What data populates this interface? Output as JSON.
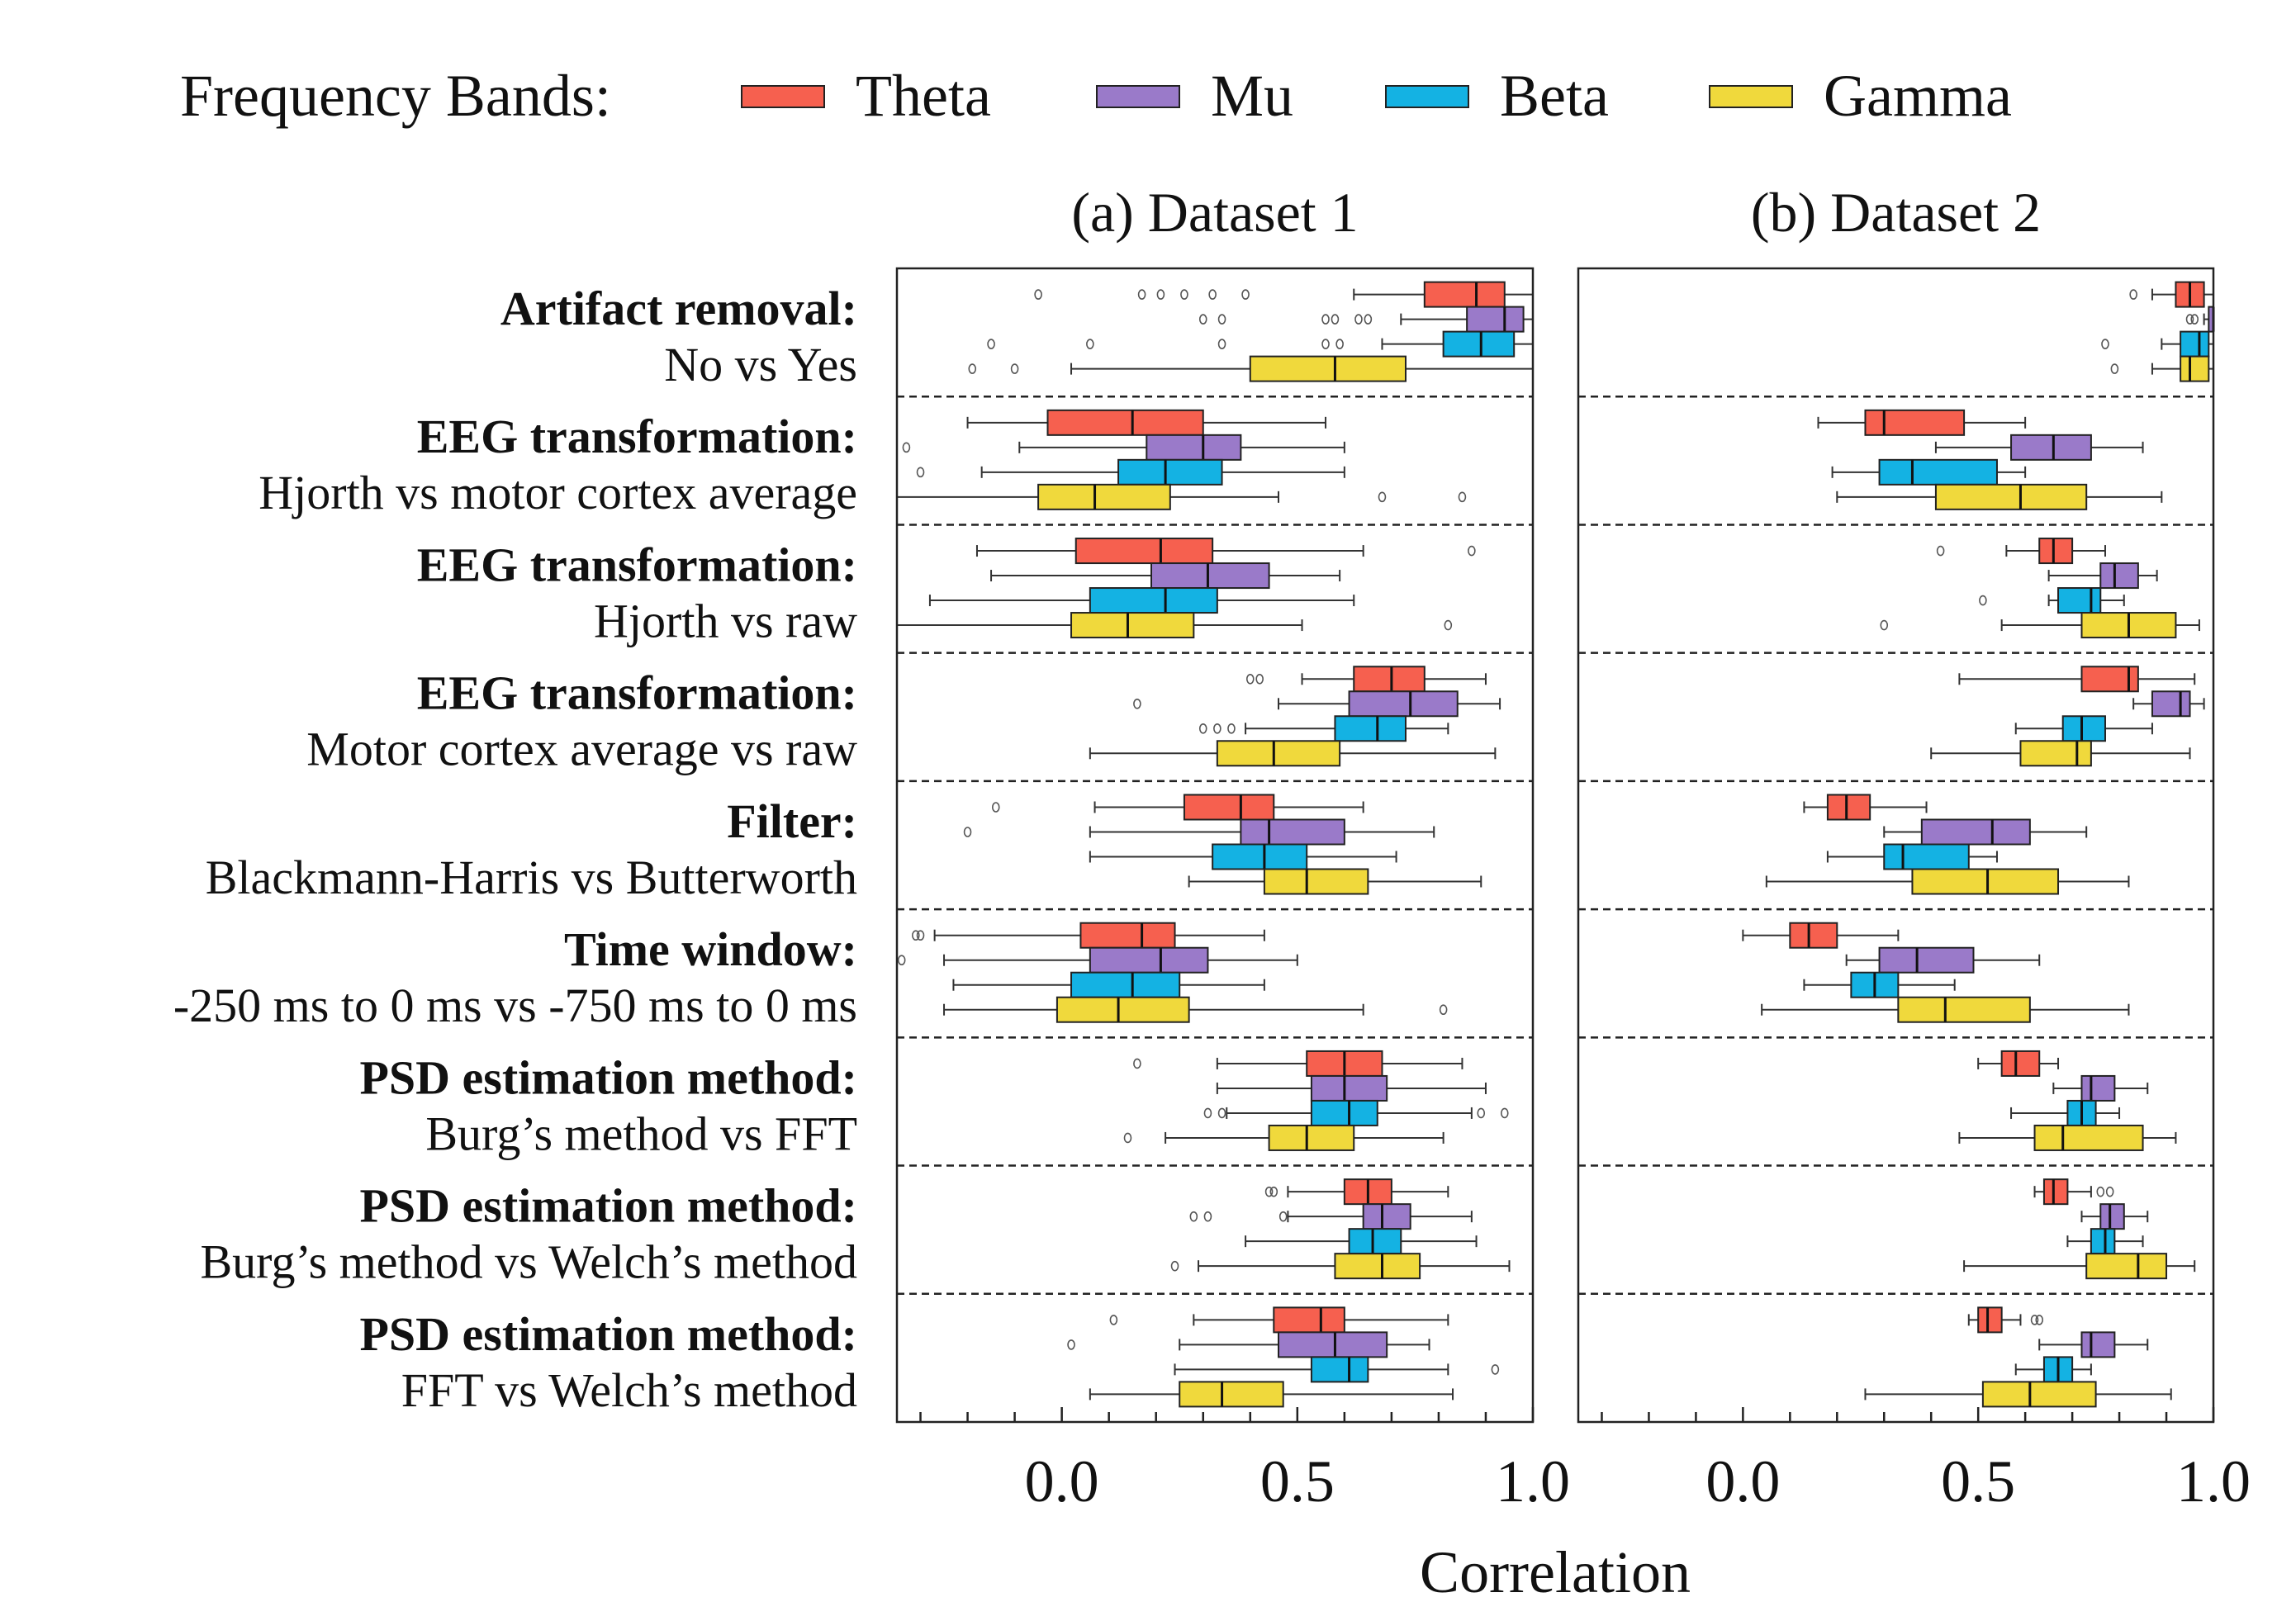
{
  "chart_data": {
    "type": "boxplot",
    "legend": {
      "title": "Frequency Bands:",
      "placement": "top",
      "bands": [
        {
          "key": "theta",
          "name": "Theta",
          "color": "#f6604f"
        },
        {
          "key": "mu",
          "name": "Mu",
          "color": "#9a7ac9"
        },
        {
          "key": "beta",
          "name": "Beta",
          "color": "#14b2e3"
        },
        {
          "key": "gamma",
          "name": "Gamma",
          "color": "#f0d93c"
        }
      ]
    },
    "xlabel": "Correlation",
    "xlim": [
      -0.35,
      1.0
    ],
    "xticks": [
      "0.0",
      "0.5",
      "1.0"
    ],
    "xtick_values": [
      0.0,
      0.5,
      1.0
    ],
    "panels": [
      {
        "title": "(a) Dataset 1"
      },
      {
        "title": "(b) Dataset 2"
      }
    ],
    "comparisons": [
      {
        "head": "Artifact removal:",
        "sub": "No vs Yes"
      },
      {
        "head": "EEG transformation:",
        "sub": "Hjorth vs motor cortex average"
      },
      {
        "head": "EEG transformation:",
        "sub": "Hjorth vs raw"
      },
      {
        "head": "EEG transformation:",
        "sub": "Motor cortex average vs raw"
      },
      {
        "head": "Filter:",
        "sub": "Blackmann-Harris vs Butterworth"
      },
      {
        "head": "Time window:",
        "sub": "-250 ms to 0 ms vs -750 ms to 0 ms"
      },
      {
        "head": "PSD estimation method:",
        "sub": "Burg’s method vs FFT"
      },
      {
        "head": "PSD estimation method:",
        "sub": "Burg’s method vs Welch’s method"
      },
      {
        "head": "PSD estimation method:",
        "sub": "FFT vs Welch’s method"
      }
    ],
    "boxes": [
      [
        [
          {
            "min": 0.62,
            "q1": 0.77,
            "med": 0.88,
            "q3": 0.94,
            "max": 1.0,
            "out": [
              -0.05,
              0.17,
              0.21,
              0.26,
              0.32,
              0.39
            ]
          },
          {
            "min": 0.72,
            "q1": 0.86,
            "med": 0.94,
            "q3": 0.98,
            "max": 1.0,
            "out": [
              0.3,
              0.34,
              0.56,
              0.58,
              0.63,
              0.65
            ]
          },
          {
            "min": 0.68,
            "q1": 0.81,
            "med": 0.89,
            "q3": 0.96,
            "max": 1.0,
            "out": [
              -0.15,
              0.06,
              0.34,
              0.56,
              0.59
            ]
          },
          {
            "min": 0.02,
            "q1": 0.4,
            "med": 0.58,
            "q3": 0.73,
            "max": 1.0,
            "out": [
              -0.19,
              -0.1
            ]
          }
        ],
        [
          {
            "min": -0.2,
            "q1": -0.03,
            "med": 0.15,
            "q3": 0.3,
            "max": 0.56,
            "out": []
          },
          {
            "min": -0.09,
            "q1": 0.18,
            "med": 0.3,
            "q3": 0.38,
            "max": 0.6,
            "out": [
              -0.33
            ]
          },
          {
            "min": -0.17,
            "q1": 0.12,
            "med": 0.22,
            "q3": 0.34,
            "max": 0.6,
            "out": [
              -0.3
            ]
          },
          {
            "min": -0.35,
            "q1": -0.05,
            "med": 0.07,
            "q3": 0.23,
            "max": 0.46,
            "out": [
              0.68,
              0.85
            ]
          }
        ],
        [
          {
            "min": -0.18,
            "q1": 0.03,
            "med": 0.21,
            "q3": 0.32,
            "max": 0.64,
            "out": [
              0.87
            ]
          },
          {
            "min": -0.15,
            "q1": 0.19,
            "med": 0.31,
            "q3": 0.44,
            "max": 0.59,
            "out": []
          },
          {
            "min": -0.28,
            "q1": 0.06,
            "med": 0.22,
            "q3": 0.33,
            "max": 0.62,
            "out": []
          },
          {
            "min": -0.35,
            "q1": 0.02,
            "med": 0.14,
            "q3": 0.28,
            "max": 0.51,
            "out": [
              0.82
            ]
          }
        ],
        [
          {
            "min": 0.51,
            "q1": 0.62,
            "med": 0.7,
            "q3": 0.77,
            "max": 0.9,
            "out": [
              0.4,
              0.42
            ]
          },
          {
            "min": 0.46,
            "q1": 0.61,
            "med": 0.74,
            "q3": 0.84,
            "max": 0.93,
            "out": [
              0.16
            ]
          },
          {
            "min": 0.39,
            "q1": 0.58,
            "med": 0.67,
            "q3": 0.73,
            "max": 0.82,
            "out": [
              0.3,
              0.33,
              0.36
            ]
          },
          {
            "min": 0.06,
            "q1": 0.33,
            "med": 0.45,
            "q3": 0.59,
            "max": 0.92,
            "out": []
          }
        ],
        [
          {
            "min": 0.07,
            "q1": 0.26,
            "med": 0.38,
            "q3": 0.45,
            "max": 0.64,
            "out": [
              -0.14
            ]
          },
          {
            "min": 0.06,
            "q1": 0.38,
            "med": 0.44,
            "q3": 0.6,
            "max": 0.79,
            "out": [
              -0.2
            ]
          },
          {
            "min": 0.06,
            "q1": 0.32,
            "med": 0.43,
            "q3": 0.52,
            "max": 0.71,
            "out": []
          },
          {
            "min": 0.27,
            "q1": 0.43,
            "med": 0.52,
            "q3": 0.65,
            "max": 0.89,
            "out": []
          }
        ],
        [
          {
            "min": -0.27,
            "q1": 0.04,
            "med": 0.17,
            "q3": 0.24,
            "max": 0.43,
            "out": [
              -0.31,
              -0.3
            ]
          },
          {
            "min": -0.25,
            "q1": 0.06,
            "med": 0.21,
            "q3": 0.31,
            "max": 0.5,
            "out": [
              -0.34
            ]
          },
          {
            "min": -0.23,
            "q1": 0.02,
            "med": 0.15,
            "q3": 0.25,
            "max": 0.43,
            "out": []
          },
          {
            "min": -0.25,
            "q1": -0.01,
            "med": 0.12,
            "q3": 0.27,
            "max": 0.64,
            "out": [
              0.81
            ]
          }
        ],
        [
          {
            "min": 0.33,
            "q1": 0.52,
            "med": 0.6,
            "q3": 0.68,
            "max": 0.85,
            "out": [
              0.16
            ]
          },
          {
            "min": 0.33,
            "q1": 0.53,
            "med": 0.6,
            "q3": 0.69,
            "max": 0.9,
            "out": []
          },
          {
            "min": 0.35,
            "q1": 0.53,
            "med": 0.61,
            "q3": 0.67,
            "max": 0.87,
            "out": [
              0.31,
              0.34,
              0.89,
              0.94
            ]
          },
          {
            "min": 0.22,
            "q1": 0.44,
            "med": 0.52,
            "q3": 0.62,
            "max": 0.81,
            "out": [
              0.14
            ]
          }
        ],
        [
          {
            "min": 0.48,
            "q1": 0.6,
            "med": 0.65,
            "q3": 0.7,
            "max": 0.82,
            "out": [
              0.44,
              0.45
            ]
          },
          {
            "min": 0.48,
            "q1": 0.64,
            "med": 0.68,
            "q3": 0.74,
            "max": 0.87,
            "out": [
              0.28,
              0.31,
              0.47
            ]
          },
          {
            "min": 0.39,
            "q1": 0.61,
            "med": 0.66,
            "q3": 0.72,
            "max": 0.88,
            "out": []
          },
          {
            "min": 0.29,
            "q1": 0.58,
            "med": 0.68,
            "q3": 0.76,
            "max": 0.95,
            "out": [
              0.24
            ]
          }
        ],
        [
          {
            "min": 0.28,
            "q1": 0.45,
            "med": 0.55,
            "q3": 0.6,
            "max": 0.82,
            "out": [
              0.11
            ]
          },
          {
            "min": 0.25,
            "q1": 0.46,
            "med": 0.58,
            "q3": 0.69,
            "max": 0.78,
            "out": [
              0.02
            ]
          },
          {
            "min": 0.24,
            "q1": 0.53,
            "med": 0.61,
            "q3": 0.65,
            "max": 0.82,
            "out": [
              0.92
            ]
          },
          {
            "min": 0.06,
            "q1": 0.25,
            "med": 0.34,
            "q3": 0.47,
            "max": 0.83,
            "out": []
          }
        ]
      ],
      [
        [
          {
            "min": 0.87,
            "q1": 0.92,
            "med": 0.95,
            "q3": 0.98,
            "max": 1.0,
            "out": [
              0.83
            ]
          },
          {
            "min": 0.98,
            "q1": 0.99,
            "med": 1.0,
            "q3": 1.0,
            "max": 1.0,
            "out": [
              0.95,
              0.96
            ]
          },
          {
            "min": 0.89,
            "q1": 0.93,
            "med": 0.97,
            "q3": 0.99,
            "max": 1.0,
            "out": [
              0.77
            ]
          },
          {
            "min": 0.87,
            "q1": 0.93,
            "med": 0.95,
            "q3": 0.99,
            "max": 1.0,
            "out": [
              0.79
            ]
          }
        ],
        [
          {
            "min": 0.16,
            "q1": 0.26,
            "med": 0.3,
            "q3": 0.47,
            "max": 0.6,
            "out": []
          },
          {
            "min": 0.41,
            "q1": 0.57,
            "med": 0.66,
            "q3": 0.74,
            "max": 0.85,
            "out": []
          },
          {
            "min": 0.19,
            "q1": 0.29,
            "med": 0.36,
            "q3": 0.54,
            "max": 0.6,
            "out": []
          },
          {
            "min": 0.2,
            "q1": 0.41,
            "med": 0.59,
            "q3": 0.73,
            "max": 0.89,
            "out": []
          }
        ],
        [
          {
            "min": 0.56,
            "q1": 0.63,
            "med": 0.66,
            "q3": 0.7,
            "max": 0.77,
            "out": [
              0.42
            ]
          },
          {
            "min": 0.65,
            "q1": 0.76,
            "med": 0.79,
            "q3": 0.84,
            "max": 0.88,
            "out": []
          },
          {
            "min": 0.65,
            "q1": 0.67,
            "med": 0.74,
            "q3": 0.76,
            "max": 0.81,
            "out": [
              0.51
            ]
          },
          {
            "min": 0.55,
            "q1": 0.72,
            "med": 0.82,
            "q3": 0.92,
            "max": 0.97,
            "out": [
              0.3
            ]
          }
        ],
        [
          {
            "min": 0.46,
            "q1": 0.72,
            "med": 0.82,
            "q3": 0.84,
            "max": 0.96,
            "out": []
          },
          {
            "min": 0.83,
            "q1": 0.87,
            "med": 0.93,
            "q3": 0.95,
            "max": 0.98,
            "out": []
          },
          {
            "min": 0.58,
            "q1": 0.68,
            "med": 0.72,
            "q3": 0.77,
            "max": 0.87,
            "out": []
          },
          {
            "min": 0.4,
            "q1": 0.59,
            "med": 0.71,
            "q3": 0.74,
            "max": 0.95,
            "out": []
          }
        ],
        [
          {
            "min": 0.13,
            "q1": 0.18,
            "med": 0.22,
            "q3": 0.27,
            "max": 0.39,
            "out": []
          },
          {
            "min": 0.3,
            "q1": 0.38,
            "med": 0.53,
            "q3": 0.61,
            "max": 0.73,
            "out": []
          },
          {
            "min": 0.18,
            "q1": 0.3,
            "med": 0.34,
            "q3": 0.48,
            "max": 0.54,
            "out": []
          },
          {
            "min": 0.05,
            "q1": 0.36,
            "med": 0.52,
            "q3": 0.67,
            "max": 0.82,
            "out": []
          }
        ],
        [
          {
            "min": 0.0,
            "q1": 0.1,
            "med": 0.14,
            "q3": 0.2,
            "max": 0.33,
            "out": []
          },
          {
            "min": 0.22,
            "q1": 0.29,
            "med": 0.37,
            "q3": 0.49,
            "max": 0.63,
            "out": []
          },
          {
            "min": 0.13,
            "q1": 0.23,
            "med": 0.28,
            "q3": 0.33,
            "max": 0.45,
            "out": []
          },
          {
            "min": 0.04,
            "q1": 0.33,
            "med": 0.43,
            "q3": 0.61,
            "max": 0.82,
            "out": []
          }
        ],
        [
          {
            "min": 0.5,
            "q1": 0.55,
            "med": 0.58,
            "q3": 0.63,
            "max": 0.67,
            "out": []
          },
          {
            "min": 0.66,
            "q1": 0.72,
            "med": 0.74,
            "q3": 0.79,
            "max": 0.86,
            "out": []
          },
          {
            "min": 0.57,
            "q1": 0.69,
            "med": 0.72,
            "q3": 0.75,
            "max": 0.8,
            "out": []
          },
          {
            "min": 0.46,
            "q1": 0.62,
            "med": 0.68,
            "q3": 0.85,
            "max": 0.92,
            "out": []
          }
        ],
        [
          {
            "min": 0.62,
            "q1": 0.64,
            "med": 0.66,
            "q3": 0.69,
            "max": 0.74,
            "out": [
              0.76,
              0.78
            ]
          },
          {
            "min": 0.72,
            "q1": 0.76,
            "med": 0.78,
            "q3": 0.81,
            "max": 0.86,
            "out": []
          },
          {
            "min": 0.69,
            "q1": 0.74,
            "med": 0.77,
            "q3": 0.79,
            "max": 0.85,
            "out": []
          },
          {
            "min": 0.47,
            "q1": 0.73,
            "med": 0.84,
            "q3": 0.9,
            "max": 0.96,
            "out": []
          }
        ],
        [
          {
            "min": 0.48,
            "q1": 0.5,
            "med": 0.52,
            "q3": 0.55,
            "max": 0.59,
            "out": [
              0.62,
              0.63
            ]
          },
          {
            "min": 0.63,
            "q1": 0.72,
            "med": 0.74,
            "q3": 0.79,
            "max": 0.86,
            "out": []
          },
          {
            "min": 0.58,
            "q1": 0.64,
            "med": 0.67,
            "q3": 0.7,
            "max": 0.74,
            "out": []
          },
          {
            "min": 0.26,
            "q1": 0.51,
            "med": 0.61,
            "q3": 0.75,
            "max": 0.91,
            "out": []
          }
        ]
      ]
    ]
  }
}
